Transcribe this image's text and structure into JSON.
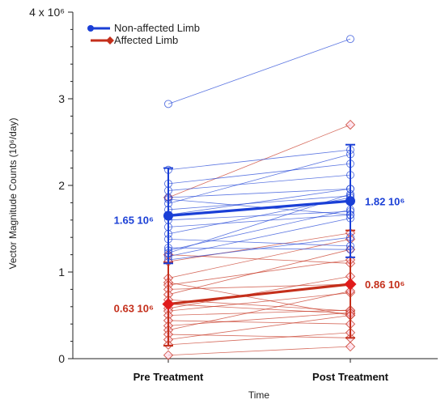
{
  "chart_data": {
    "type": "line",
    "xlabel": "Time",
    "ylabel": "Vector Magnitude Counts (10⁶/day)",
    "ylim": [
      0,
      4
    ],
    "y_ticks": [
      {
        "value": 0,
        "label": "0"
      },
      {
        "value": 1,
        "label": "1"
      },
      {
        "value": 2,
        "label": "2"
      },
      {
        "value": 3,
        "label": "3"
      },
      {
        "value": 4,
        "label": "4 x 10⁶"
      }
    ],
    "categories": [
      "Pre Treatment",
      "Post Treatment"
    ],
    "legend": {
      "position": "top-left"
    },
    "series": [
      {
        "name": "Non-affected Limb",
        "color": "#1a3fd6",
        "mean": [
          1.65,
          1.82
        ],
        "sd": [
          0.55,
          0.65
        ],
        "mean_labels": [
          "1.65 10⁶",
          "1.82 10⁶"
        ],
        "individuals": [
          [
            2.94,
            3.69
          ],
          [
            2.18,
            2.41
          ],
          [
            2.02,
            2.25
          ],
          [
            1.94,
            2.12
          ],
          [
            1.86,
            1.96
          ],
          [
            1.84,
            1.66
          ],
          [
            1.79,
            2.36
          ],
          [
            1.72,
            1.88
          ],
          [
            1.66,
            1.96
          ],
          [
            1.6,
            1.7
          ],
          [
            1.52,
            1.66
          ],
          [
            1.44,
            1.86
          ],
          [
            1.38,
            1.3
          ],
          [
            1.28,
            1.26
          ],
          [
            1.25,
            1.72
          ],
          [
            1.22,
            1.9
          ],
          [
            1.18,
            1.62
          ],
          [
            1.14,
            1.4
          ]
        ]
      },
      {
        "name": "Affected Limb",
        "color": "#c42f1b",
        "mean": [
          0.63,
          0.86
        ],
        "sd": [
          0.48,
          0.62
        ],
        "mean_labels": [
          "0.63 10⁶",
          "0.86 10⁶"
        ],
        "individuals": [
          [
            1.86,
            2.7
          ],
          [
            1.2,
            1.1
          ],
          [
            1.12,
            1.45
          ],
          [
            0.93,
            1.38
          ],
          [
            0.88,
            0.5
          ],
          [
            0.85,
            1.14
          ],
          [
            0.8,
            0.86
          ],
          [
            0.74,
            1.26
          ],
          [
            0.68,
            0.55
          ],
          [
            0.63,
            0.52
          ],
          [
            0.58,
            0.95
          ],
          [
            0.55,
            0.76
          ],
          [
            0.5,
            0.56
          ],
          [
            0.44,
            0.4
          ],
          [
            0.38,
            0.53
          ],
          [
            0.33,
            0.78
          ],
          [
            0.28,
            0.24
          ],
          [
            0.22,
            0.5
          ],
          [
            0.16,
            0.3
          ],
          [
            0.04,
            0.14
          ]
        ]
      }
    ]
  }
}
